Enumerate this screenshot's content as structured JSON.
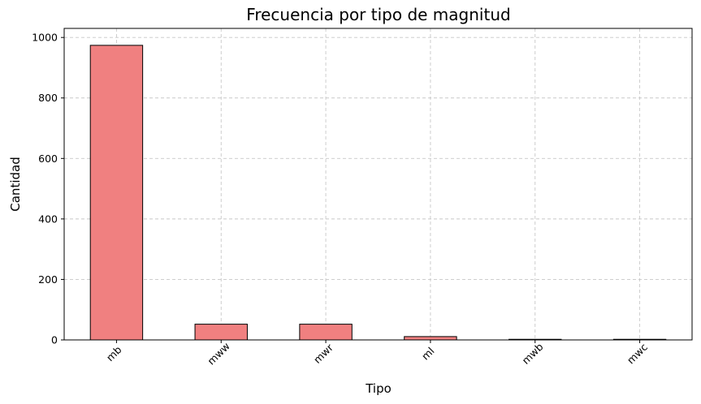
{
  "chart_data": {
    "type": "bar",
    "title": "Frecuencia por tipo de magnitud",
    "xlabel": "Tipo",
    "ylabel": "Cantidad",
    "categories": [
      "mb",
      "mww",
      "mwr",
      "ml",
      "mwb",
      "mwc"
    ],
    "values": [
      974,
      52,
      52,
      11,
      2,
      2
    ],
    "ylim": [
      0,
      1030
    ],
    "yticks": [
      0,
      200,
      400,
      600,
      800,
      1000
    ],
    "grid": true,
    "legend": "none",
    "bar_color": "#f08080",
    "edge_color": "#000000"
  }
}
